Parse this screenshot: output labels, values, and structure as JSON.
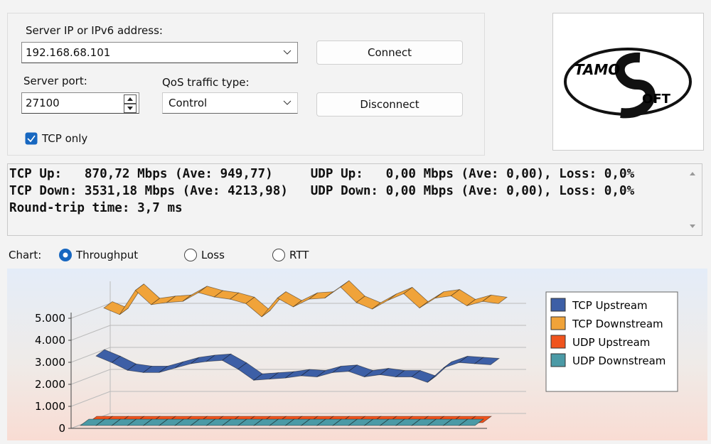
{
  "form": {
    "server_label": "Server IP or IPv6  address:",
    "server_value": "192.168.68.101",
    "connect": "Connect",
    "port_label": "Server port:",
    "port_value": "27100",
    "qos_label": "QoS traffic type:",
    "qos_value": "Control",
    "disconnect": "Disconnect",
    "tcp_only": "TCP only",
    "tcp_only_checked": true
  },
  "logo": {
    "top": "TAMO",
    "bottom": "OFT"
  },
  "status": {
    "lines": [
      "TCP Up:   870,72 Mbps (Ave: 949,77)     UDP Up:   0,00 Mbps (Ave: 0,00), Loss: 0,0%",
      "TCP Down: 3531,18 Mbps (Ave: 4213,98)   UDP Down: 0,00 Mbps (Ave: 0,00), Loss: 0,0%",
      "Round-trip time: 3,7 ms"
    ]
  },
  "chart_selector": {
    "label": "Chart:",
    "options": [
      "Throughput",
      "Loss",
      "RTT"
    ],
    "selected": 0
  },
  "chart_data": {
    "type": "line3d",
    "series": [
      {
        "name": "TCP Upstream",
        "color": "#3d5fa6",
        "values": [
          2900,
          2600,
          2250,
          2150,
          2150,
          2350,
          2550,
          2650,
          2700,
          2300,
          1800,
          1850,
          1900,
          2000,
          1950,
          2150,
          2200,
          1950,
          2050,
          1950,
          1950,
          1700,
          2350,
          2600,
          2550,
          2500
        ]
      },
      {
        "name": "TCP Downstream",
        "color": "#f0a33a",
        "values": [
          4950,
          4650,
          5750,
          5100,
          5200,
          5250,
          5650,
          5450,
          5350,
          5150,
          4550,
          5400,
          5000,
          5350,
          5400,
          5900,
          5200,
          4900,
          5300,
          5600,
          4950,
          5400,
          5500,
          5050,
          5250,
          5150
        ]
      },
      {
        "name": "UDP Upstream",
        "color": "#f0541e",
        "values": [
          0,
          0,
          0,
          0,
          0,
          0,
          0,
          0,
          0,
          0,
          0,
          0,
          0,
          0,
          0,
          0,
          0,
          0,
          0,
          0,
          0,
          0,
          0,
          0,
          0,
          0
        ]
      },
      {
        "name": "UDP Downstream",
        "color": "#4b9aa6",
        "values": [
          0,
          0,
          0,
          0,
          0,
          0,
          0,
          0,
          0,
          0,
          0,
          0,
          0,
          0,
          0,
          0,
          0,
          0,
          0,
          0,
          0,
          0,
          0,
          0,
          0,
          0
        ]
      }
    ],
    "ylim": [
      0,
      6000
    ],
    "yticks": [
      0,
      {
        "value": 1000,
        "label": "1.000"
      },
      {
        "value": 2000,
        "label": "2.000"
      },
      {
        "value": 3000,
        "label": "3.000"
      },
      {
        "value": 4000,
        "label": "4.000"
      },
      {
        "value": 5000,
        "label": "5.000"
      }
    ],
    "grid": true,
    "legend": "right"
  }
}
